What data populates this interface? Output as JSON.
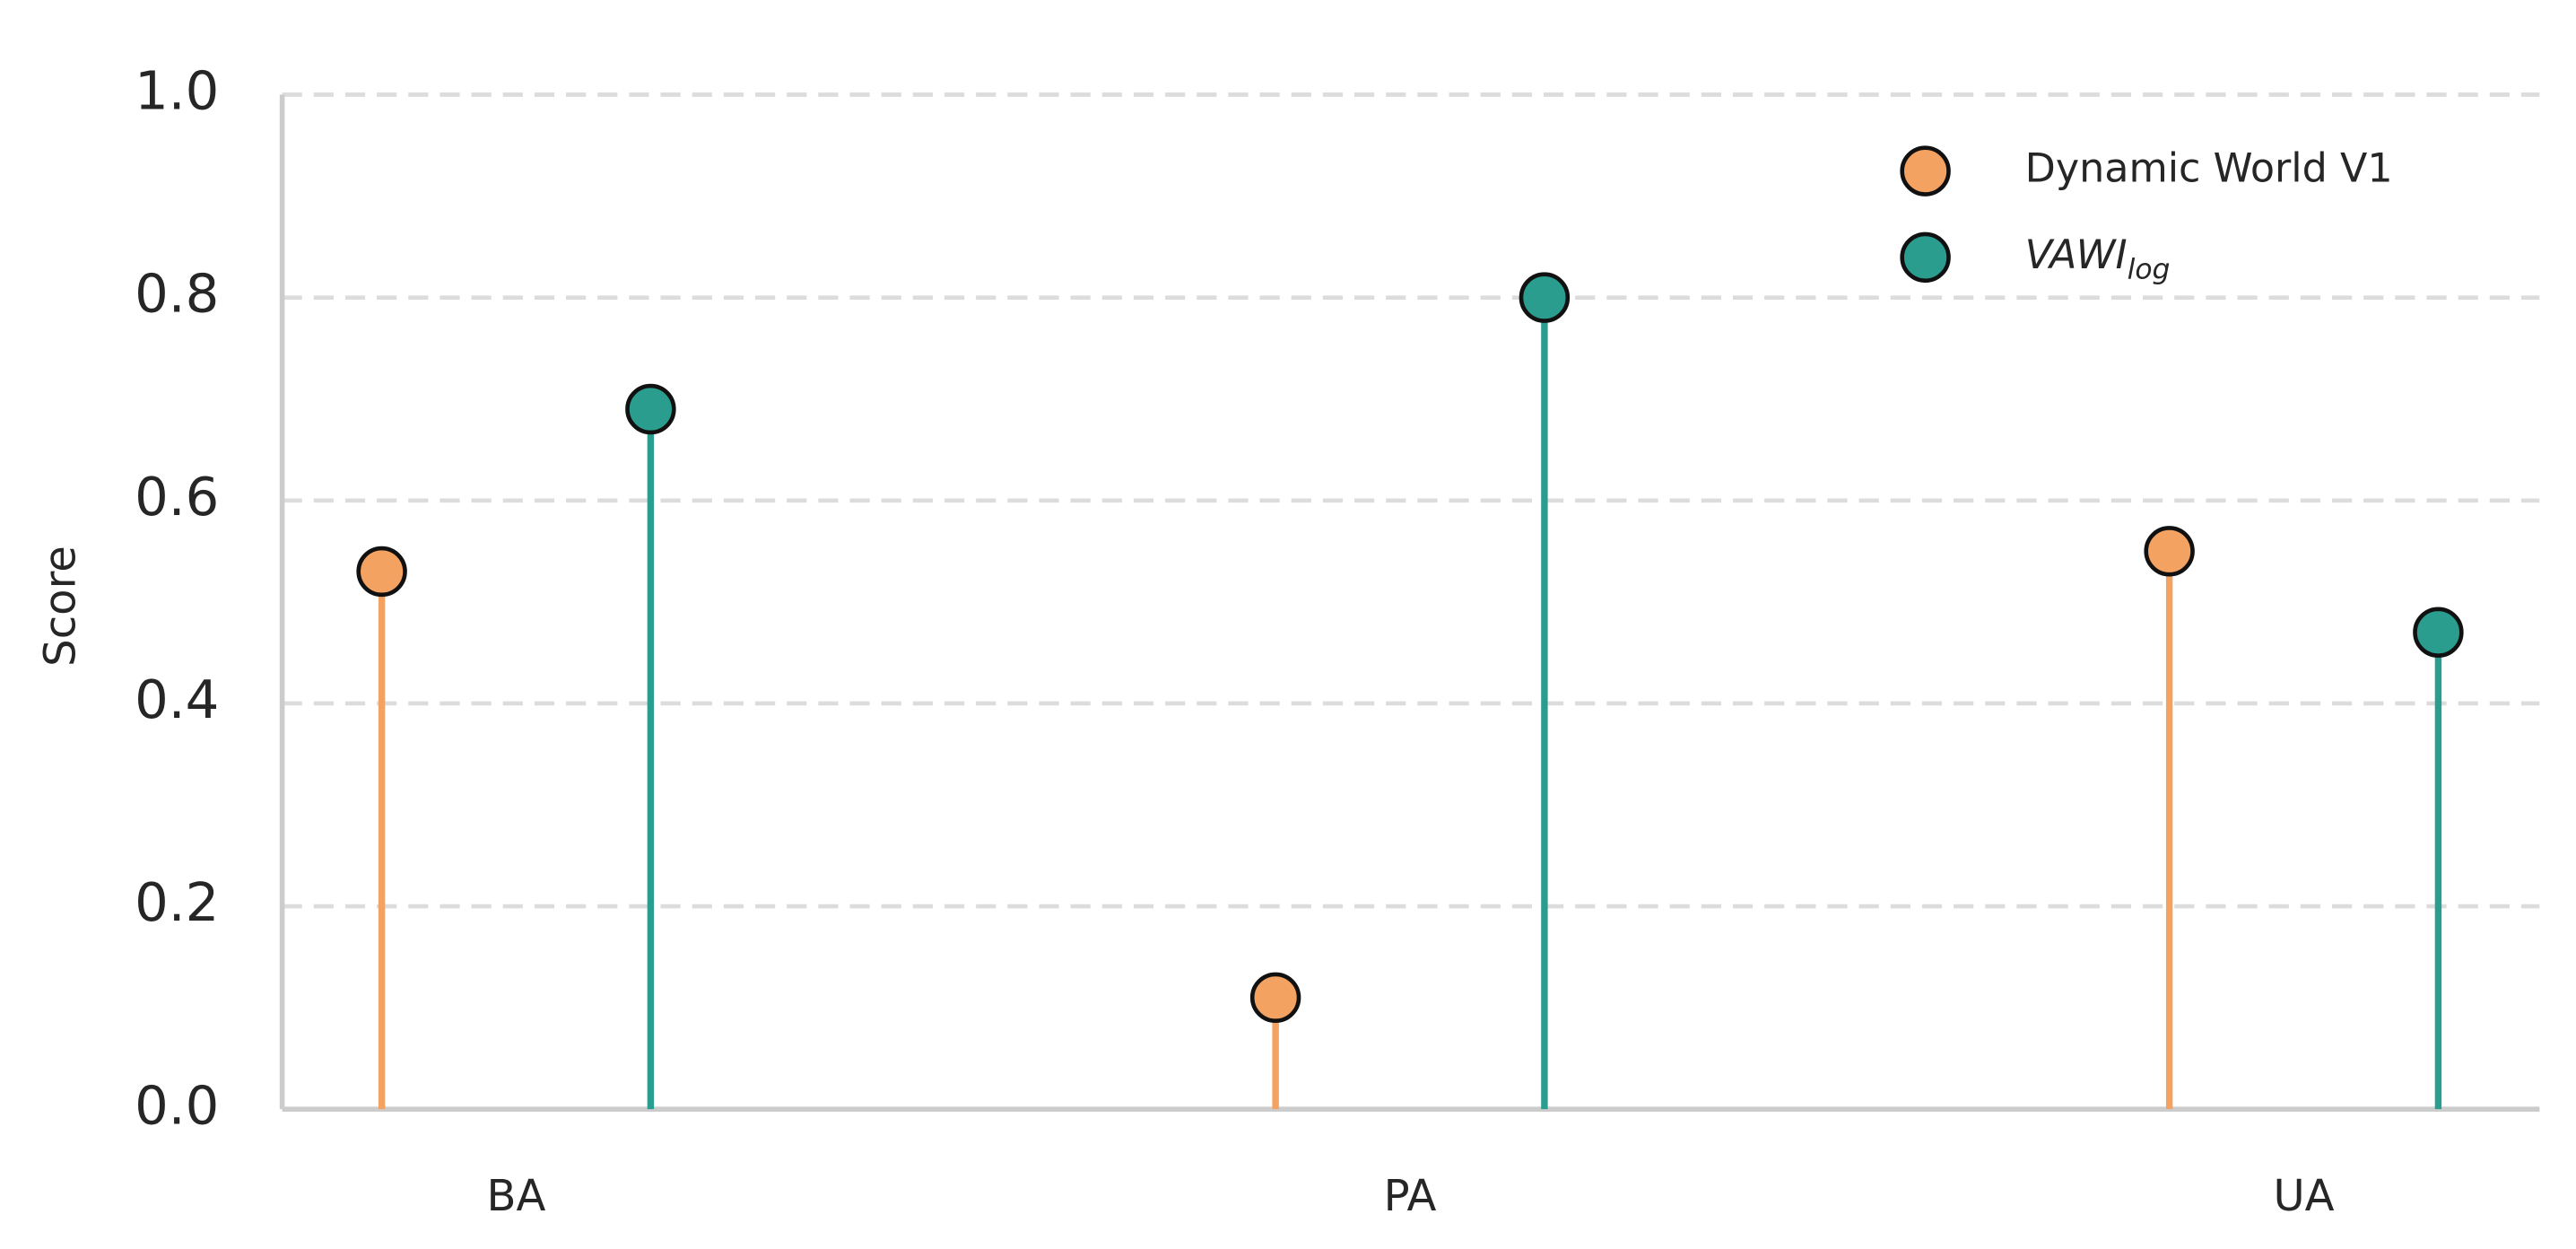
{
  "chart_data": {
    "type": "lollipop",
    "y_label": "Score",
    "categories": [
      "BA",
      "PA",
      "UA"
    ],
    "series": [
      {
        "name": "Dynamic World V1",
        "color": "#f4a261",
        "values": [
          0.53,
          0.11,
          0.55
        ]
      },
      {
        "name": "VAWI",
        "name_subscript": "log",
        "color": "#2a9d8f",
        "values": [
          0.69,
          0.8,
          0.47
        ]
      }
    ],
    "ylim": [
      0,
      1
    ],
    "yticks": [
      {
        "value": 0,
        "label": "0.0"
      },
      0.2,
      0.4,
      0.6,
      0.8,
      {
        "value": 1,
        "label": "1.0"
      }
    ],
    "grid": true,
    "legend": "upper right"
  }
}
